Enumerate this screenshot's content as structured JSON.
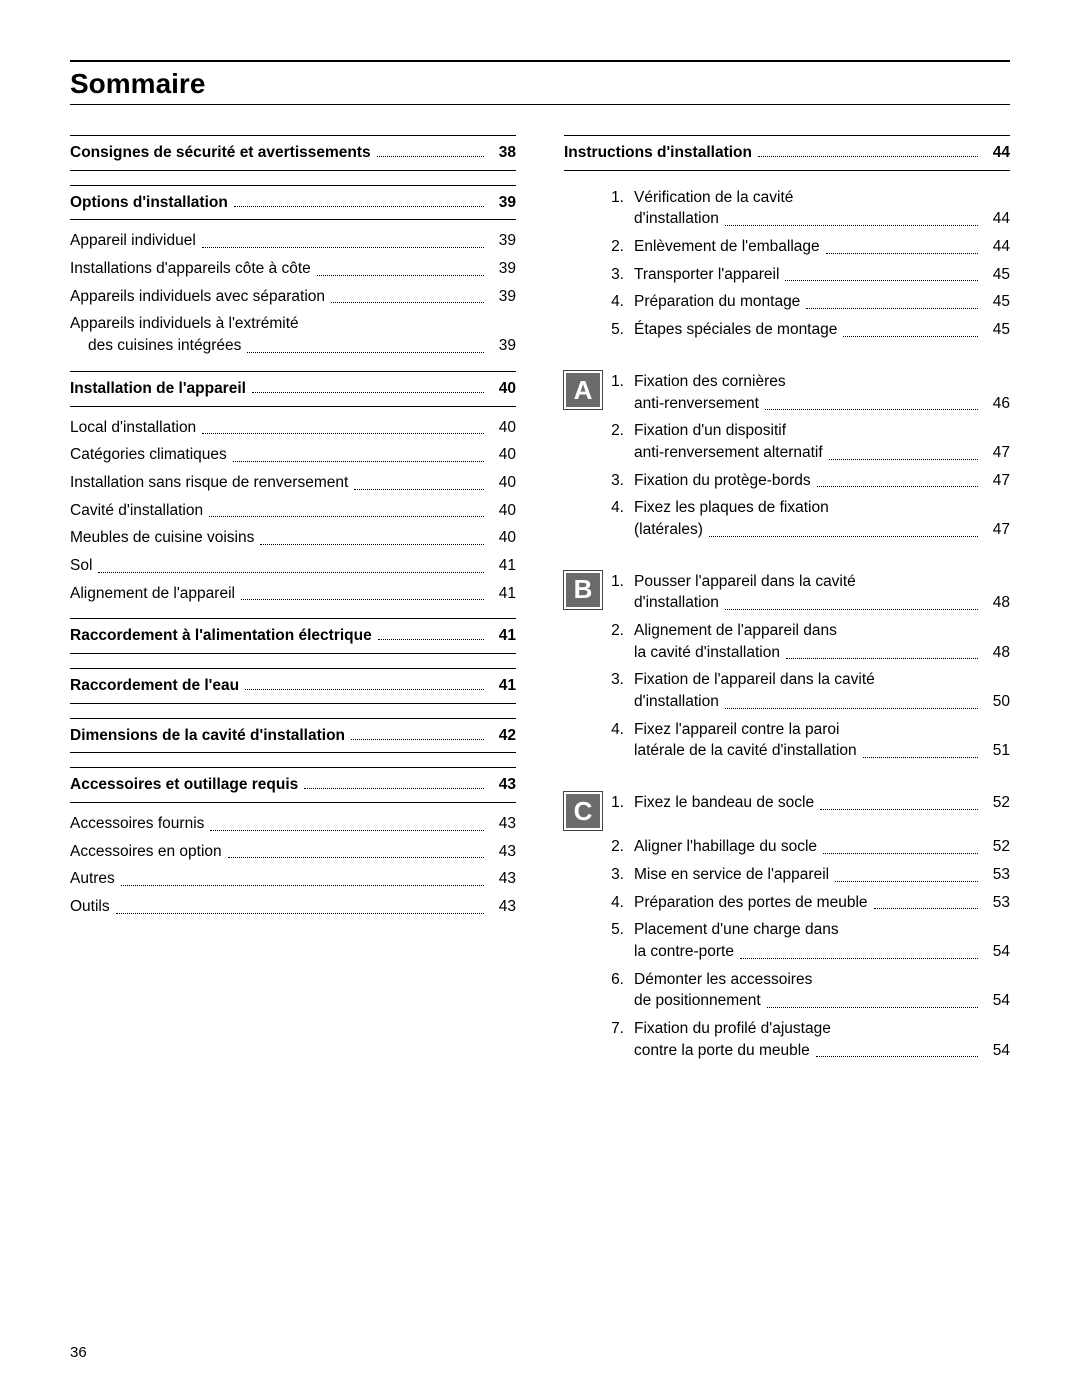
{
  "title": "Sommaire",
  "page_number": "36",
  "left_sections": [
    {
      "type": "head",
      "label": "Consignes de sécurité et avertissements",
      "page": "38"
    },
    {
      "type": "head",
      "label": "Options d'installation",
      "page": "39"
    },
    {
      "type": "item",
      "label": "Appareil individuel",
      "page": "39"
    },
    {
      "type": "item",
      "label": "Installations d'appareils côte à côte",
      "page": "39"
    },
    {
      "type": "item",
      "label": "Appareils individuels avec séparation",
      "page": "39"
    },
    {
      "type": "item2",
      "label1": "Appareils individuels à l'extrémité",
      "label2": "des cuisines intégrées",
      "page": "39"
    },
    {
      "type": "head",
      "label": "Installation de l'appareil",
      "page": "40"
    },
    {
      "type": "item",
      "label": "Local d'installation",
      "page": "40"
    },
    {
      "type": "item",
      "label": "Catégories climatiques",
      "page": "40"
    },
    {
      "type": "item",
      "label": "Installation sans risque de renversement",
      "page": "40"
    },
    {
      "type": "item",
      "label": "Cavité d'installation",
      "page": "40"
    },
    {
      "type": "item",
      "label": "Meubles de cuisine voisins",
      "page": "40"
    },
    {
      "type": "item",
      "label": "Sol",
      "page": "41"
    },
    {
      "type": "item",
      "label": "Alignement de l'appareil",
      "page": "41"
    },
    {
      "type": "head",
      "label": "Raccordement à l'alimentation électrique",
      "page": "41"
    },
    {
      "type": "head",
      "label": "Raccordement de l'eau",
      "page": "41"
    },
    {
      "type": "head",
      "label": "Dimensions de la cavité d'installation",
      "page": "42"
    },
    {
      "type": "head",
      "label": "Accessoires et outillage requis",
      "page": "43"
    },
    {
      "type": "item",
      "label": "Accessoires fournis",
      "page": "43"
    },
    {
      "type": "item",
      "label": "Accessoires en option",
      "page": "43"
    },
    {
      "type": "item",
      "label": "Autres",
      "page": "43"
    },
    {
      "type": "item",
      "label": "Outils",
      "page": "43"
    }
  ],
  "right_head": {
    "label": "Instructions d'installation",
    "page": "44"
  },
  "right_groups": [
    {
      "badge": "",
      "items": [
        {
          "n": "1.",
          "l1": "Vérification de la cavité",
          "l2": "d'installation",
          "page": "44"
        },
        {
          "n": "2.",
          "l1": "Enlèvement de l'emballage",
          "page": "44"
        },
        {
          "n": "3.",
          "l1": "Transporter l'appareil",
          "page": "45"
        },
        {
          "n": "4.",
          "l1": "Préparation du montage",
          "page": "45"
        },
        {
          "n": "5.",
          "l1": "Étapes spéciales de montage",
          "page": "45"
        }
      ]
    },
    {
      "badge": "A",
      "items": [
        {
          "n": "1.",
          "l1": "Fixation des cornières",
          "l2": "anti-renversement",
          "page": "46"
        },
        {
          "n": "2.",
          "l1": "Fixation d'un dispositif",
          "l2": "anti-renversement alternatif",
          "page": "47"
        },
        {
          "n": "3.",
          "l1": "Fixation du protège-bords",
          "page": "47"
        },
        {
          "n": "4.",
          "l1": "Fixez les plaques de fixation",
          "l2": "(latérales)",
          "page": "47"
        }
      ]
    },
    {
      "badge": "B",
      "items": [
        {
          "n": "1.",
          "l1": "Pousser l'appareil dans la cavité",
          "l2": "d'installation",
          "page": "48"
        },
        {
          "n": "2.",
          "l1": "Alignement de l'appareil dans",
          "l2": "la cavité d'installation",
          "page": "48"
        },
        {
          "n": "3.",
          "l1": "Fixation de l'appareil dans la cavité",
          "l2": "d'installation",
          "page": "50"
        },
        {
          "n": "4.",
          "l1": "Fixez l'appareil contre la paroi",
          "l2": "latérale de la cavité d'installation",
          "page": "51"
        }
      ]
    },
    {
      "badge": "C",
      "items": [
        {
          "n": "1.",
          "l1": "Fixez le bandeau de socle",
          "page": "52"
        },
        {
          "n": "2.",
          "l1": "Aligner l'habillage du socle",
          "page": "52"
        },
        {
          "n": "3.",
          "l1": "Mise en service de l'appareil",
          "page": "53"
        },
        {
          "n": "4.",
          "l1": "Préparation des portes de meuble",
          "page": "53"
        },
        {
          "n": "5.",
          "l1": "Placement d'une charge dans",
          "l2": "la contre-porte",
          "page": "54"
        },
        {
          "n": "6.",
          "l1": "Démonter les accessoires",
          "l2": "de positionnement",
          "page": "54"
        },
        {
          "n": "7.",
          "l1": "Fixation du profilé d'ajustage",
          "l2": "contre la porte du meuble",
          "page": "54"
        }
      ]
    }
  ]
}
